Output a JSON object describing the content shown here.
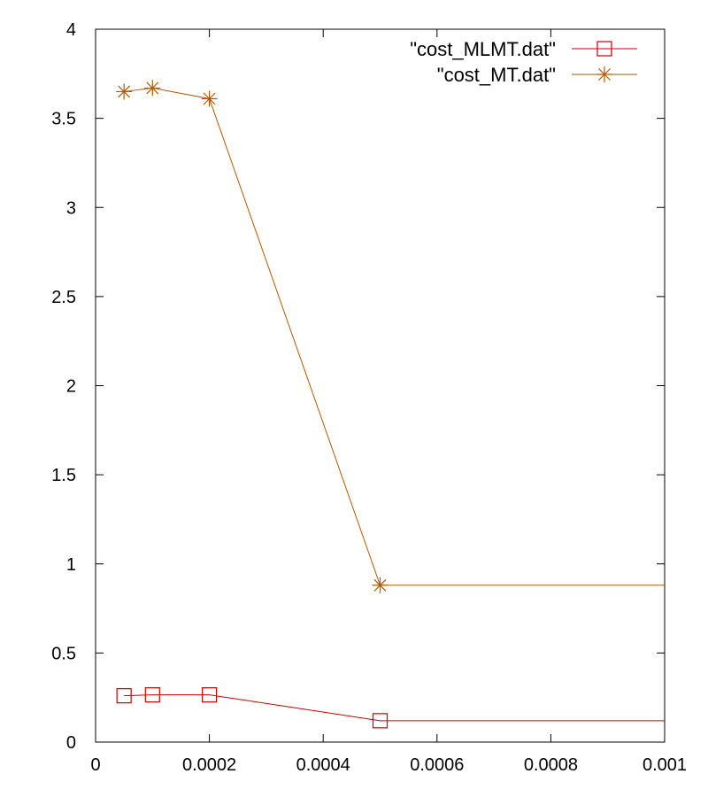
{
  "chart_data": {
    "type": "line",
    "title": "",
    "xlabel": "",
    "ylabel": "",
    "xlim": [
      0,
      0.001
    ],
    "ylim": [
      0,
      4
    ],
    "x_ticks": [
      "0",
      "0.0002",
      "0.0004",
      "0.0006",
      "0.0008",
      "0.001"
    ],
    "x_tick_values": [
      0,
      0.0002,
      0.0004,
      0.0006,
      0.0008,
      0.001
    ],
    "y_ticks": [
      "0",
      "0.5",
      "1",
      "1.5",
      "2",
      "2.5",
      "3",
      "3.5",
      "4"
    ],
    "y_tick_values": [
      0,
      0.5,
      1,
      1.5,
      2,
      2.5,
      3,
      3.5,
      4
    ],
    "grid": false,
    "legend_position": "top-right",
    "series": [
      {
        "name": "\"cost_MLMT.dat\"",
        "color": "#cc0000",
        "marker": "square",
        "x": [
          5e-05,
          0.0001,
          0.0002,
          0.0005,
          0.001
        ],
        "y": [
          0.26,
          0.265,
          0.265,
          0.12,
          0.12
        ]
      },
      {
        "name": "\"cost_MT.dat\"",
        "color": "#b35900",
        "marker": "star",
        "x": [
          5e-05,
          0.0001,
          0.0002,
          0.0005,
          0.001
        ],
        "y": [
          3.65,
          3.67,
          3.61,
          0.88,
          0.88
        ]
      }
    ]
  }
}
